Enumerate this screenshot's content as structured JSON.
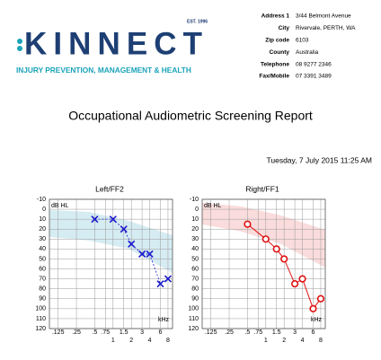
{
  "header": {
    "logo": "KINNECT",
    "established": "EST. 1996",
    "tagline": "INJURY PREVENTION, MANAGEMENT & HEALTH"
  },
  "address": [
    {
      "label": "Address 1",
      "value": "3/44 Belmont Avenue"
    },
    {
      "label": "City",
      "value": "Rivervale, PERTH, WA"
    },
    {
      "label": "Zip code",
      "value": "6103"
    },
    {
      "label": "County",
      "value": "Australia"
    },
    {
      "label": "Telephone",
      "value": "08 9277 2346"
    },
    {
      "label": "Fax/Mobile",
      "value": "07 3391 3489"
    }
  ],
  "title": "Occupational Audiometric Screening Report",
  "date": "Tuesday, 7 July 2015 11:25 AM",
  "chart_data": [
    {
      "type": "line",
      "title": "Left/FF2",
      "y_label": "dB HL",
      "x_label": "kHz",
      "x_log": true,
      "y_inverted": true,
      "grid": true,
      "xlim": [
        0.09,
        9.5
      ],
      "ylim": [
        -10,
        120
      ],
      "xticks": [
        {
          "value": 0.125,
          "label": ".125"
        },
        {
          "value": 0.25,
          "label": ".25"
        },
        {
          "value": 0.5,
          "label": ".5"
        },
        {
          "value": 0.75,
          "label": ".75"
        },
        1,
        1.5,
        2,
        3,
        4,
        6,
        8
      ],
      "yticks": [
        -10,
        0,
        10,
        20,
        30,
        40,
        50,
        60,
        70,
        80,
        90,
        100,
        110,
        120
      ],
      "x": [
        0.5,
        1,
        1.5,
        2,
        3,
        4,
        6,
        8
      ],
      "series": [
        {
          "color": "#1a1acc",
          "marker": "x",
          "line_style": "dotted",
          "values": [
            10,
            10,
            20,
            35,
            45,
            45,
            75,
            70
          ]
        }
      ]
    },
    {
      "type": "line",
      "title": "Right/FF1",
      "y_label": "dB HL",
      "x_label": "kHz",
      "x_log": true,
      "y_inverted": true,
      "grid": true,
      "xlim": [
        0.09,
        9.5
      ],
      "ylim": [
        -10,
        120
      ],
      "xticks": [
        {
          "value": 0.125,
          "label": ".125"
        },
        {
          "value": 0.25,
          "label": ".25"
        },
        {
          "value": 0.5,
          "label": ".5"
        },
        {
          "value": 0.75,
          "label": ".75"
        },
        1,
        1.5,
        2,
        3,
        4,
        6,
        8
      ],
      "yticks": [
        -10,
        0,
        10,
        20,
        30,
        40,
        50,
        60,
        70,
        80,
        90,
        100,
        110,
        120
      ],
      "x": [
        0.5,
        1,
        1.5,
        2,
        3,
        4,
        6,
        8
      ],
      "series": [
        {
          "color": "#dd1111",
          "marker": "o",
          "line_style": "solid",
          "values": [
            15,
            30,
            40,
            50,
            75,
            70,
            100,
            90
          ]
        }
      ]
    }
  ]
}
